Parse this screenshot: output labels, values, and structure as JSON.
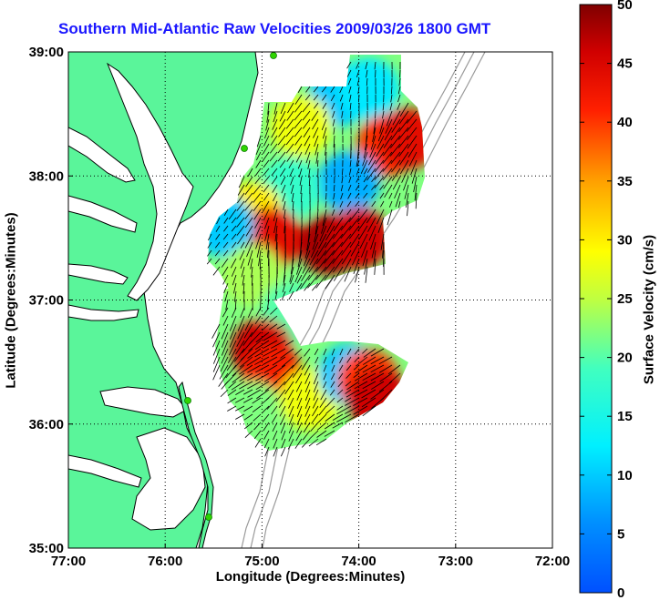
{
  "chart_data": {
    "type": "heatmap",
    "title": "Southern Mid-Atlantic Raw Velocities 2009/03/26 1800 GMT",
    "xlabel": "Longitude (Degrees:Minutes)",
    "ylabel": "Latitude (Degrees:Minutes)",
    "x_ticks": [
      "77:00",
      "76:00",
      "75:00",
      "74:00",
      "73:00",
      "72:00"
    ],
    "y_ticks": [
      "39:00",
      "38:00",
      "37:00",
      "36:00",
      "35:00"
    ],
    "xlim": [
      -77,
      -72
    ],
    "ylim": [
      35,
      39
    ],
    "grid": true,
    "colorbar": {
      "label": "Surface Velocity (cm/s)",
      "range": [
        0,
        50
      ],
      "ticks": [
        "50",
        "45",
        "40",
        "35",
        "30",
        "25",
        "20",
        "15",
        "10",
        "5",
        "0"
      ],
      "colormap": "jet"
    },
    "colors": {
      "land": "#5af59a",
      "coast": "#000000",
      "coastal_markers": "#2fd400",
      "bathymetry": "#9a9a9a",
      "vectors": "#000000"
    },
    "velocity_regions": [
      {
        "lon": -74.2,
        "lat": 38.65,
        "speed": 10
      },
      {
        "lon": -73.9,
        "lat": 38.7,
        "speed": 12
      },
      {
        "lon": -74.6,
        "lat": 38.4,
        "speed": 28
      },
      {
        "lon": -73.7,
        "lat": 38.25,
        "speed": 40
      },
      {
        "lon": -73.5,
        "lat": 38.3,
        "speed": 44
      },
      {
        "lon": -74.1,
        "lat": 37.95,
        "speed": 8
      },
      {
        "lon": -74.7,
        "lat": 37.9,
        "speed": 18
      },
      {
        "lon": -75.1,
        "lat": 37.7,
        "speed": 30
      },
      {
        "lon": -74.9,
        "lat": 37.5,
        "speed": 44
      },
      {
        "lon": -74.3,
        "lat": 37.45,
        "speed": 48
      },
      {
        "lon": -74.0,
        "lat": 37.5,
        "speed": 46
      },
      {
        "lon": -75.4,
        "lat": 37.6,
        "speed": 10
      },
      {
        "lon": -75.1,
        "lat": 37.2,
        "speed": 24
      },
      {
        "lon": -74.7,
        "lat": 36.9,
        "speed": 20
      },
      {
        "lon": -75.0,
        "lat": 36.6,
        "speed": 46
      },
      {
        "lon": -74.9,
        "lat": 36.4,
        "speed": 42
      },
      {
        "lon": -75.1,
        "lat": 36.1,
        "speed": 22
      },
      {
        "lon": -74.5,
        "lat": 36.2,
        "speed": 28
      },
      {
        "lon": -74.1,
        "lat": 36.4,
        "speed": 10
      },
      {
        "lon": -73.9,
        "lat": 36.35,
        "speed": 40
      },
      {
        "lon": -73.8,
        "lat": 36.2,
        "speed": 46
      }
    ]
  }
}
